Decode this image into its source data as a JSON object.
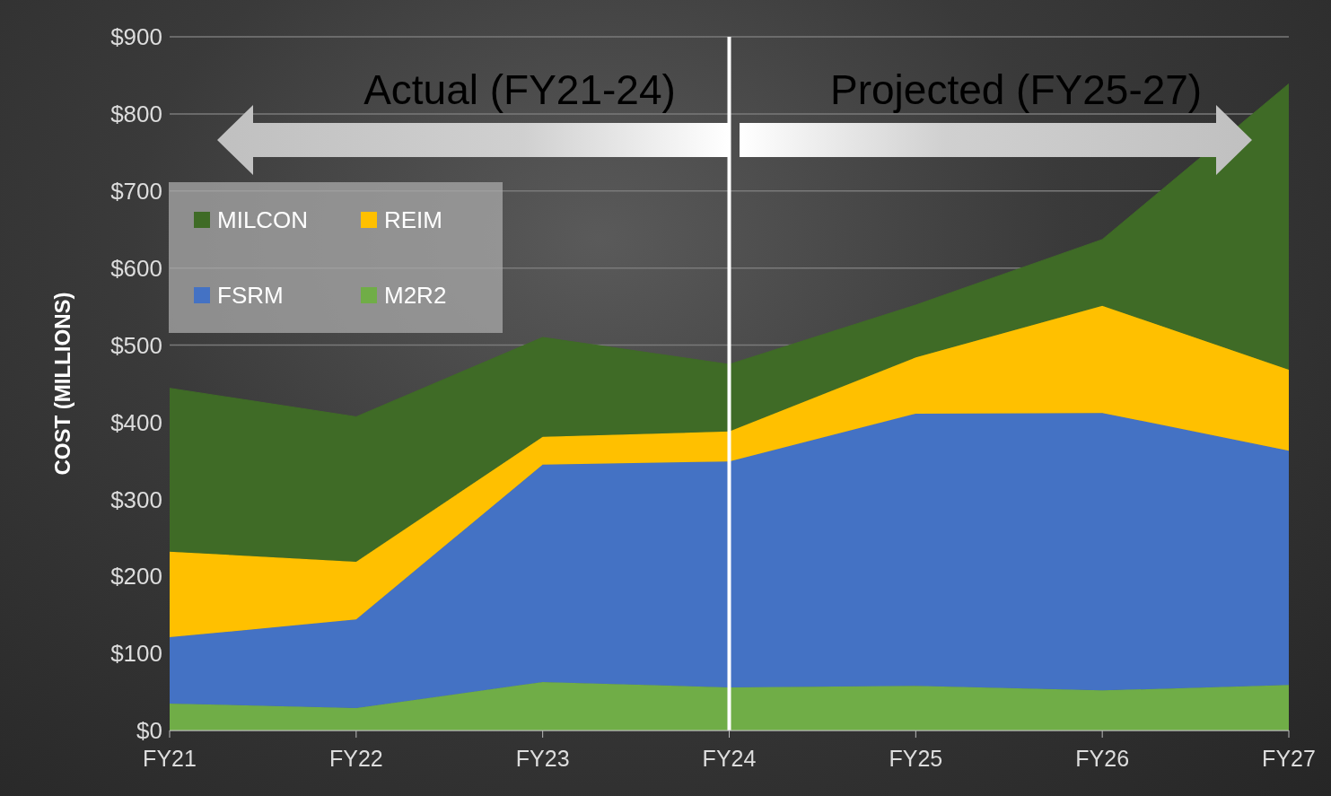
{
  "chart_data": {
    "type": "area",
    "stacked": true,
    "ylabel": "COST (MILLIONS)",
    "categories": [
      "FY21",
      "FY22",
      "FY23",
      "FY24",
      "FY25",
      "FY26",
      "FY27"
    ],
    "series": [
      {
        "name": "M2R2",
        "color": "#70ad47",
        "values": [
          35,
          29,
          63,
          56,
          58,
          52,
          59
        ]
      },
      {
        "name": "FSRM",
        "color": "#4472c4",
        "values": [
          86,
          115,
          282,
          293,
          353,
          360,
          304
        ]
      },
      {
        "name": "REIM",
        "color": "#ffc000",
        "values": [
          111,
          75,
          36,
          39,
          73,
          139,
          105
        ]
      },
      {
        "name": "MILCON",
        "color": "#3f6b26",
        "values": [
          212,
          188,
          129,
          87,
          68,
          86,
          371
        ]
      }
    ],
    "ylim": [
      0,
      900
    ],
    "yticks": [
      {
        "value": 0,
        "label": "$0"
      },
      {
        "value": 100,
        "label": "$100"
      },
      {
        "value": 200,
        "label": "$200"
      },
      {
        "value": 300,
        "label": "$300"
      },
      {
        "value": 400,
        "label": "$400"
      },
      {
        "value": 500,
        "label": "$500"
      },
      {
        "value": 600,
        "label": "$600"
      },
      {
        "value": 700,
        "label": "$700"
      },
      {
        "value": 800,
        "label": "$800"
      },
      {
        "value": 900,
        "label": "$900"
      }
    ],
    "grid": "y",
    "legend": "top left",
    "ref_lines": [
      {
        "axis": "x",
        "value": "FY24",
        "color": "#ffffff"
      }
    ],
    "annotations": [
      "Actual (FY21-24)",
      "Projected (FY25-27)"
    ]
  }
}
